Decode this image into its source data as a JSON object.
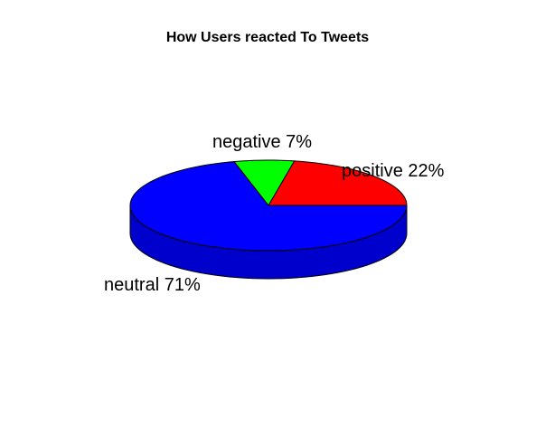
{
  "chart_data": {
    "type": "pie",
    "style": "3d",
    "title": "How Users reacted To Tweets",
    "slices": [
      {
        "name": "positive",
        "value": 22,
        "label": "positive 22%",
        "color": "#ff0000",
        "side_color": "#cc0000"
      },
      {
        "name": "negative",
        "value": 7,
        "label": "negative 7%",
        "color": "#00ff00",
        "side_color": "#00cc00"
      },
      {
        "name": "neutral",
        "value": 71,
        "label": "neutral 71%",
        "color": "#0000ff",
        "side_color": "#0000cc"
      }
    ]
  }
}
